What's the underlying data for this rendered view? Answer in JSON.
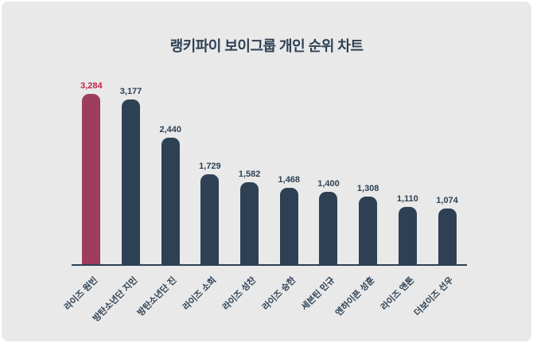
{
  "chart_data": {
    "type": "bar",
    "title": "랭키파이 보이그룹 개인 순위 차트",
    "categories": [
      "라이즈 원빈",
      "방탄소년단 지민",
      "방탄소년단 진",
      "라이즈 소희",
      "라이즈 성찬",
      "라이즈 승한",
      "세븐틴 민규",
      "엔하이픈 성훈",
      "라이즈 앤톤",
      "더보이즈 선우"
    ],
    "values": [
      3284,
      3177,
      2440,
      1729,
      1582,
      1468,
      1400,
      1308,
      1110,
      1074
    ],
    "value_labels": [
      "3,284",
      "3,177",
      "2,440",
      "1,729",
      "1,582",
      "1,468",
      "1,400",
      "1,308",
      "1,110",
      "1,074"
    ],
    "highlight_index": 0,
    "ylim": [
      0,
      3284
    ],
    "grid": false,
    "legend": "none",
    "colors": {
      "highlight_bar": "#9d3c5d",
      "default_bar": "#2e4154",
      "highlight_value": "#c2244a",
      "default_value": "#2e4154",
      "title": "#2e4154",
      "axis": "#2e4154",
      "background": "#e9e9e9"
    }
  }
}
